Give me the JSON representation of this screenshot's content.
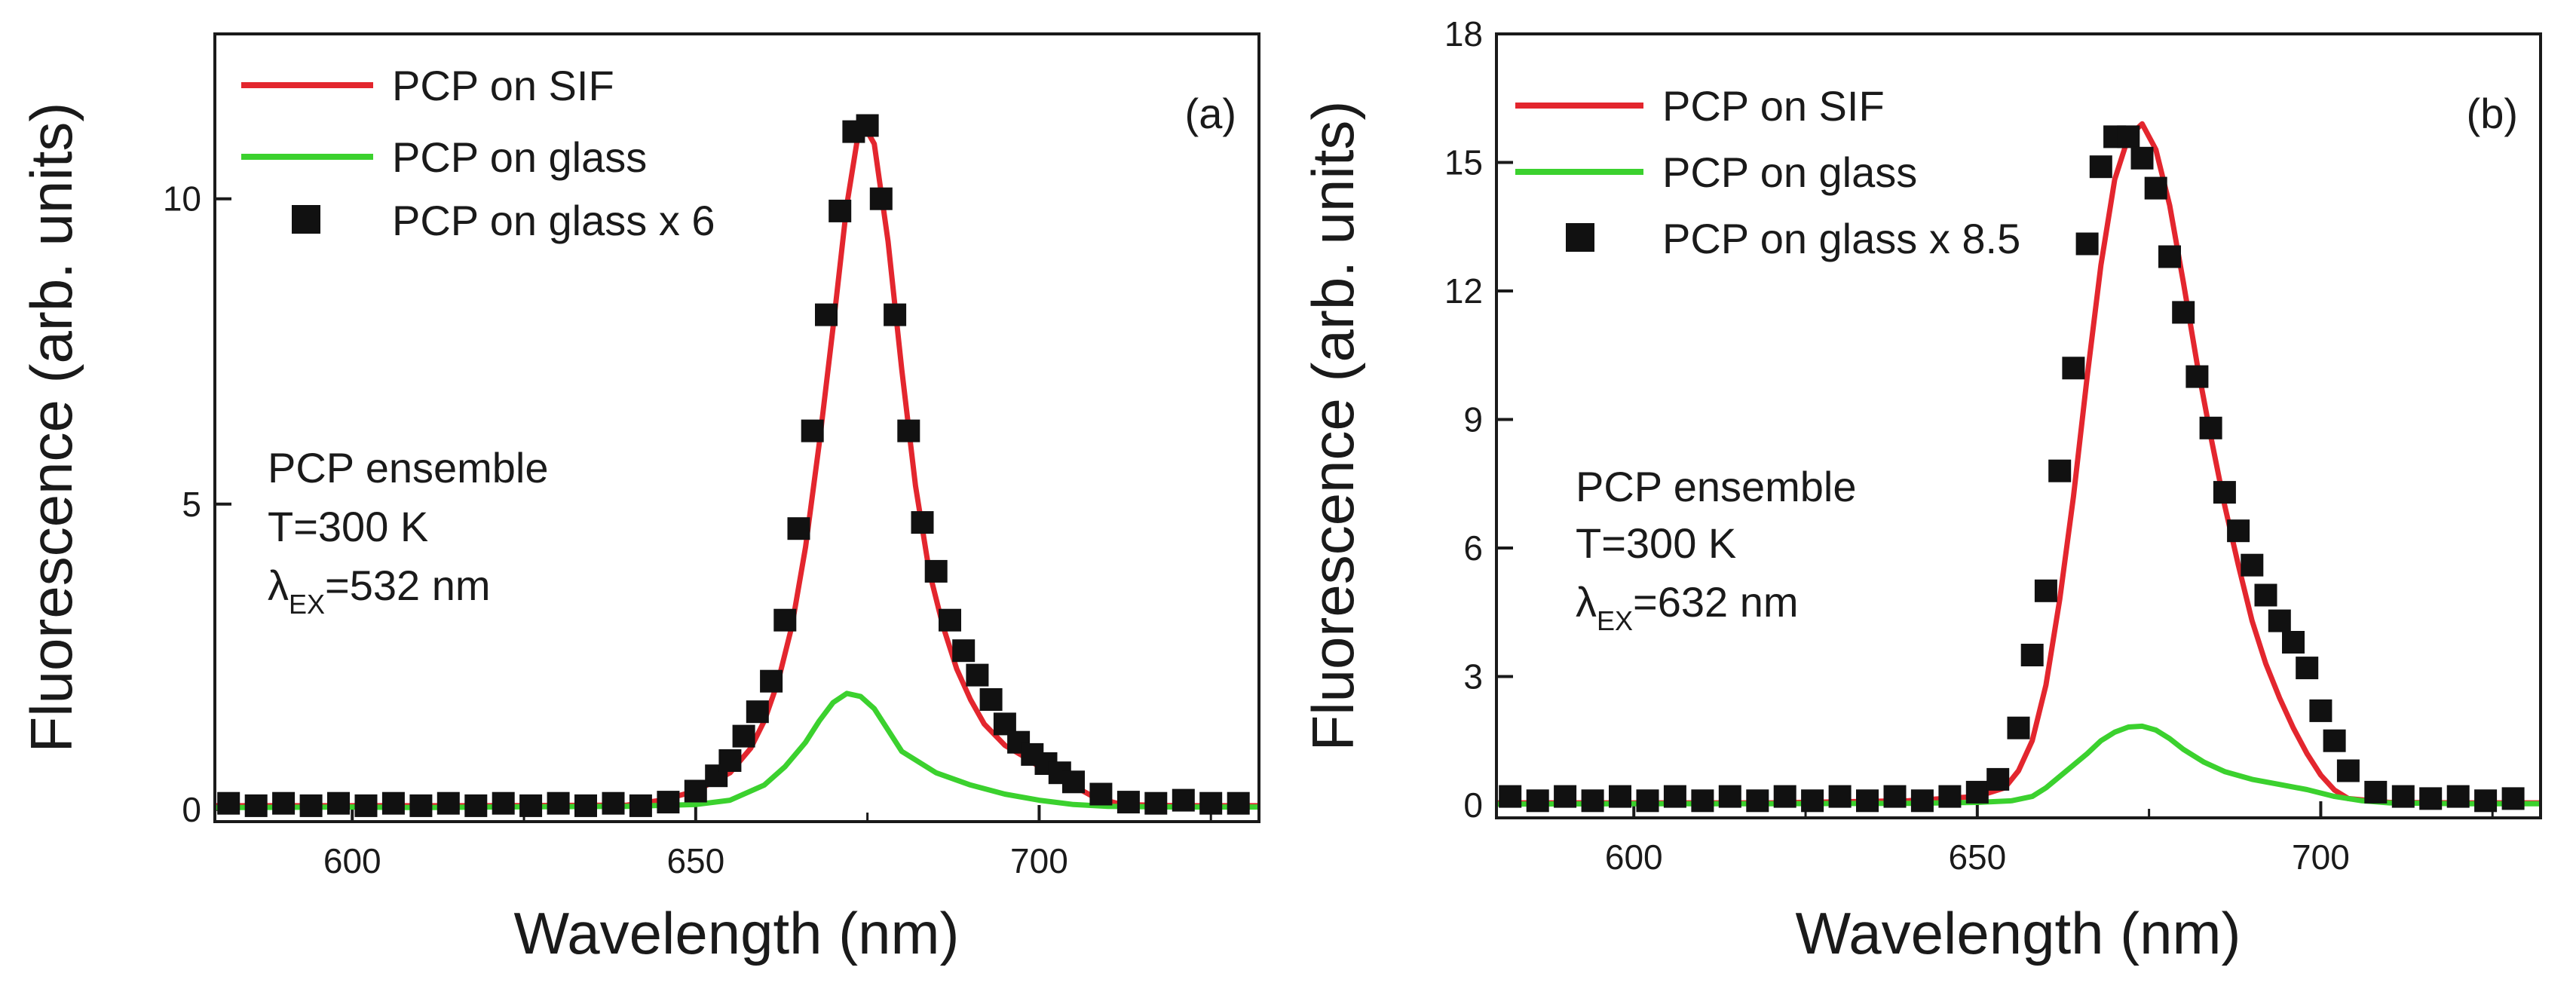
{
  "chart_data": [
    {
      "type": "line",
      "panel_label": "(a)",
      "xlabel": "Wavelength (nm)",
      "ylabel": "Fluorescence (arb. units)",
      "xlim": [
        580,
        732
      ],
      "ylim": [
        -0.2,
        12.7
      ],
      "xticks": [
        600,
        650,
        700
      ],
      "yticks": [
        0,
        5,
        10
      ],
      "legend_position": "top-left",
      "colors": {
        "sif": "#e3262e",
        "glass": "#3bd12e",
        "scaled": "#111111"
      },
      "annotations": {
        "line1": "PCP ensemble",
        "line2": "T=300 K",
        "lambda": "λ",
        "sub": "EX",
        "rest": "=532 nm"
      },
      "series": [
        {
          "name": "PCP on SIF",
          "kind": "line",
          "color": "#e3262e",
          "x": [
            580,
            600,
            620,
            640,
            645,
            650,
            655,
            658,
            660,
            662,
            664,
            666,
            668,
            670,
            672,
            674,
            676,
            678,
            680,
            682,
            684,
            686,
            688,
            690,
            692,
            695,
            698,
            700,
            704,
            708,
            712,
            720,
            732
          ],
          "y": [
            0.06,
            0.06,
            0.06,
            0.07,
            0.15,
            0.3,
            0.6,
            1.0,
            1.45,
            2.1,
            3.0,
            4.3,
            6.0,
            7.9,
            9.9,
            11.3,
            10.9,
            9.3,
            7.2,
            5.3,
            3.9,
            3.0,
            2.3,
            1.8,
            1.4,
            1.05,
            0.85,
            0.7,
            0.45,
            0.2,
            0.08,
            0.06,
            0.06
          ]
        },
        {
          "name": "PCP on glass",
          "kind": "line",
          "color": "#3bd12e",
          "x": [
            580,
            600,
            610,
            620,
            640,
            650,
            655,
            660,
            663,
            666,
            668,
            670,
            672,
            674,
            676,
            678,
            680,
            685,
            690,
            695,
            700,
            705,
            710,
            720,
            732
          ],
          "y": [
            0.03,
            0.04,
            0.03,
            0.04,
            0.05,
            0.08,
            0.15,
            0.4,
            0.7,
            1.1,
            1.45,
            1.75,
            1.9,
            1.85,
            1.65,
            1.3,
            0.95,
            0.6,
            0.4,
            0.25,
            0.15,
            0.08,
            0.05,
            0.04,
            0.04
          ]
        },
        {
          "name": "PCP on glass x 6",
          "kind": "scatter",
          "color": "#111111",
          "x": [
            582,
            586,
            590,
            594,
            598,
            602,
            606,
            610,
            614,
            618,
            622,
            626,
            630,
            634,
            638,
            642,
            646,
            650,
            653,
            655,
            657,
            659,
            661,
            663,
            665,
            667,
            669,
            671,
            673,
            675,
            677,
            679,
            681,
            683,
            685,
            687,
            689,
            691,
            693,
            695,
            697,
            699,
            701,
            703,
            705,
            709,
            713,
            717,
            721,
            725,
            729
          ],
          "y": [
            0.1,
            0.06,
            0.1,
            0.06,
            0.1,
            0.06,
            0.1,
            0.06,
            0.1,
            0.06,
            0.1,
            0.06,
            0.1,
            0.06,
            0.1,
            0.06,
            0.12,
            0.3,
            0.55,
            0.8,
            1.2,
            1.6,
            2.1,
            3.1,
            4.6,
            6.2,
            8.1,
            9.8,
            11.1,
            11.2,
            10.0,
            8.1,
            6.2,
            4.7,
            3.9,
            3.1,
            2.6,
            2.2,
            1.8,
            1.4,
            1.1,
            0.9,
            0.75,
            0.6,
            0.45,
            0.25,
            0.12,
            0.1,
            0.15,
            0.1,
            0.1
          ]
        }
      ]
    },
    {
      "type": "line",
      "panel_label": "(b)",
      "xlabel": "Wavelength (nm)",
      "ylabel": "Fluorescence (arb. units)",
      "xlim": [
        580,
        732
      ],
      "ylim": [
        -0.3,
        18
      ],
      "xticks": [
        600,
        650,
        700
      ],
      "yticks": [
        0,
        3,
        6,
        9,
        12,
        15,
        18
      ],
      "legend_position": "top-left",
      "colors": {
        "sif": "#e3262e",
        "glass": "#3bd12e",
        "scaled": "#111111"
      },
      "annotations": {
        "line1": "PCP ensemble",
        "line2": "T=300 K",
        "lambda": "λ",
        "sub": "EX",
        "rest": "=632 nm"
      },
      "series": [
        {
          "name": "PCP on SIF",
          "kind": "line",
          "color": "#e3262e",
          "x": [
            580,
            600,
            620,
            640,
            650,
            654,
            656,
            658,
            660,
            662,
            664,
            666,
            668,
            670,
            672,
            674,
            676,
            678,
            680,
            682,
            684,
            686,
            688,
            690,
            692,
            694,
            696,
            698,
            700,
            702,
            704,
            710,
            720,
            732
          ],
          "y": [
            0.05,
            0.05,
            0.05,
            0.1,
            0.2,
            0.4,
            0.8,
            1.5,
            2.8,
            4.8,
            7.2,
            10.0,
            12.6,
            14.6,
            15.6,
            15.9,
            15.3,
            14.0,
            12.2,
            10.3,
            8.6,
            7.0,
            5.6,
            4.3,
            3.3,
            2.5,
            1.8,
            1.2,
            0.7,
            0.35,
            0.15,
            0.06,
            0.05,
            0.05
          ]
        },
        {
          "name": "PCP on glass",
          "kind": "line",
          "color": "#3bd12e",
          "x": [
            580,
            600,
            620,
            640,
            650,
            655,
            658,
            660,
            663,
            666,
            668,
            670,
            672,
            674,
            676,
            678,
            680,
            683,
            686,
            690,
            694,
            698,
            702,
            706,
            710,
            720,
            732
          ],
          "y": [
            0.02,
            0.03,
            0.03,
            0.04,
            0.06,
            0.1,
            0.2,
            0.4,
            0.8,
            1.2,
            1.5,
            1.7,
            1.82,
            1.84,
            1.75,
            1.55,
            1.3,
            1.0,
            0.78,
            0.6,
            0.48,
            0.36,
            0.2,
            0.1,
            0.05,
            0.03,
            0.03
          ]
        },
        {
          "name": "PCP on glass x 8.5",
          "kind": "scatter",
          "color": "#111111",
          "x": [
            582,
            586,
            590,
            594,
            598,
            602,
            606,
            610,
            614,
            618,
            622,
            626,
            630,
            634,
            638,
            642,
            646,
            650,
            653,
            656,
            658,
            660,
            662,
            664,
            666,
            668,
            670,
            672,
            674,
            676,
            678,
            680,
            682,
            684,
            686,
            688,
            690,
            692,
            694,
            696,
            698,
            700,
            702,
            704,
            708,
            712,
            716,
            720,
            724,
            728
          ],
          "y": [
            0.2,
            0.1,
            0.2,
            0.1,
            0.2,
            0.1,
            0.2,
            0.1,
            0.2,
            0.1,
            0.2,
            0.1,
            0.2,
            0.1,
            0.2,
            0.1,
            0.2,
            0.3,
            0.6,
            1.8,
            3.5,
            5.0,
            7.8,
            10.2,
            13.1,
            14.9,
            15.6,
            15.6,
            15.1,
            14.4,
            12.8,
            11.5,
            10.0,
            8.8,
            7.3,
            6.4,
            5.6,
            4.9,
            4.3,
            3.8,
            3.2,
            2.2,
            1.5,
            0.8,
            0.3,
            0.2,
            0.15,
            0.2,
            0.1,
            0.15
          ]
        }
      ]
    }
  ]
}
